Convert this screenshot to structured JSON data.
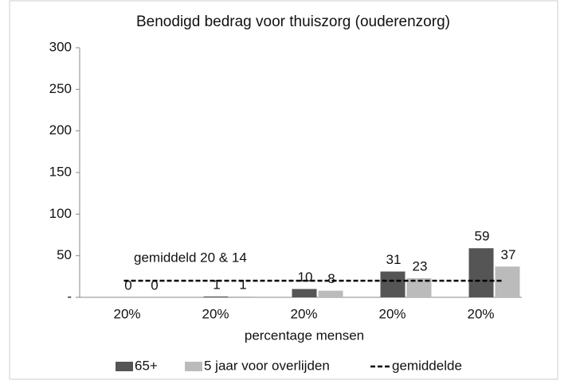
{
  "chart_data": {
    "type": "bar",
    "title": "Benodigd bedrag voor thuiszorg (ouderenzorg)",
    "x_label": "percentage mensen",
    "annotation": "gemiddeld 20 & 14",
    "categories": [
      "20%",
      "20%",
      "20%",
      "20%",
      "20%"
    ],
    "series": [
      {
        "name": "65+",
        "color": "#555555",
        "values": [
          0,
          1,
          10,
          31,
          59
        ]
      },
      {
        "name": "5 jaar voor overlijden",
        "color": "#bbbbbb",
        "values": [
          0,
          1,
          8,
          23,
          37
        ]
      },
      {
        "name": "gemiddelde",
        "type": "line",
        "dashed": true,
        "color": "#000000",
        "values": [
          20,
          20,
          20,
          20,
          20
        ]
      }
    ],
    "ylim": [
      0,
      300
    ],
    "yticks": [
      {
        "value": 0,
        "label": "-"
      },
      50,
      100,
      150,
      200,
      250,
      300
    ],
    "legend": "bottom"
  }
}
